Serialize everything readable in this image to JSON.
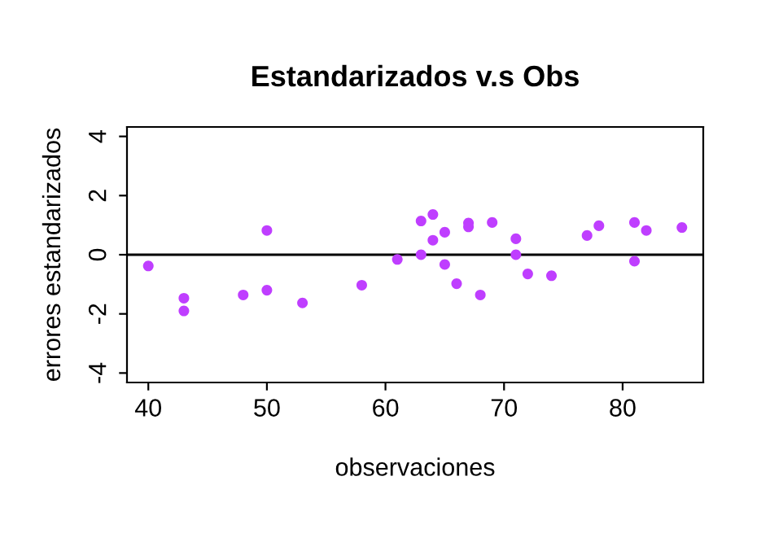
{
  "chart_data": {
    "type": "scatter",
    "title": "Estandarizados v.s Obs",
    "xlabel": "observaciones",
    "ylabel": "errores estandarizados",
    "x": [
      40,
      43,
      43,
      48,
      50,
      50,
      53,
      58,
      61,
      63,
      63,
      64,
      64,
      65,
      65,
      66,
      67,
      67,
      68,
      69,
      71,
      71,
      72,
      74,
      77,
      78,
      81,
      81,
      82,
      85
    ],
    "series": [
      {
        "color": "#bf3eff",
        "values": [
          -0.38,
          -1.47,
          -1.9,
          -1.36,
          0.82,
          -1.2,
          -1.63,
          -1.03,
          -0.16,
          0.0,
          1.14,
          1.36,
          0.49,
          0.76,
          -0.33,
          -0.98,
          1.07,
          0.94,
          -1.36,
          1.09,
          0.54,
          0.0,
          -0.65,
          -0.71,
          0.65,
          0.98,
          1.09,
          -0.22,
          0.82,
          0.92
        ]
      }
    ],
    "xlim": [
      38.2,
      86.8
    ],
    "ylim": [
      -4.32,
      4.32
    ],
    "xticks": [
      40,
      50,
      60,
      70,
      80
    ],
    "yticks": [
      -4,
      -2,
      0,
      2,
      4
    ],
    "ref_lines": [
      {
        "axis": "y",
        "value": 0,
        "color": "#000000"
      }
    ],
    "marker": "circle",
    "grid": false,
    "legend": false
  }
}
